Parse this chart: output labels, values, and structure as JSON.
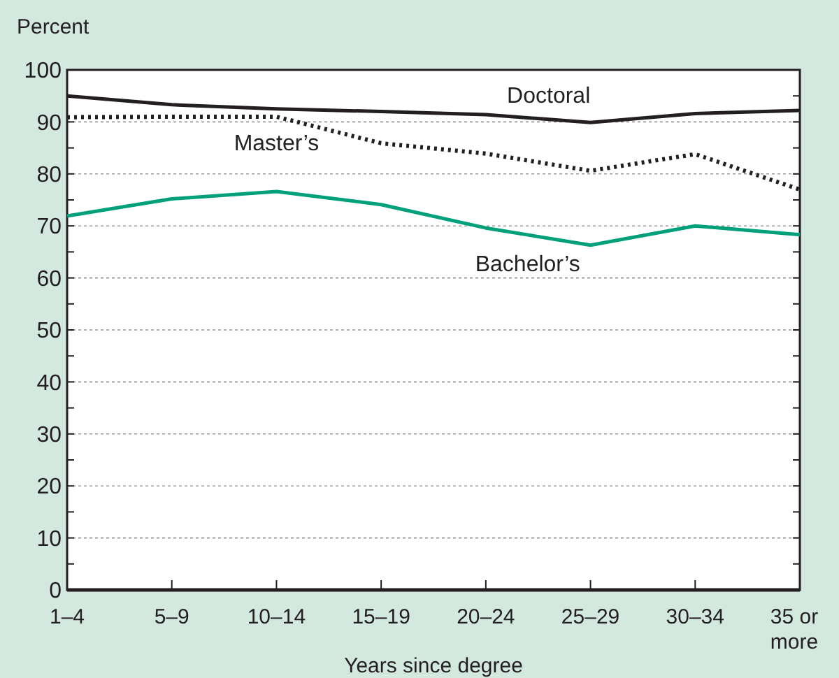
{
  "chart_data": {
    "type": "line",
    "ylabel": "Percent",
    "xlabel": "Years since degree",
    "categories": [
      "1–4",
      "5–9",
      "10–14",
      "15–19",
      "20–24",
      "25–29",
      "30–34",
      "35 or more"
    ],
    "series": [
      {
        "name": "Doctoral",
        "color": "#231f20",
        "line_style": "solid",
        "values": [
          95,
          93.3,
          92.5,
          92,
          91.4,
          89.9,
          91.6,
          92.2
        ]
      },
      {
        "name": "Master’s",
        "color": "#231f20",
        "line_style": "dotted",
        "values": [
          90.9,
          91,
          91,
          85.9,
          83.9,
          80.6,
          83.8,
          77
        ]
      },
      {
        "name": "Bachelor’s",
        "color": "#00a07a",
        "line_style": "solid",
        "values": [
          71.9,
          75.2,
          76.6,
          74.1,
          69.6,
          66.3,
          70,
          68.3
        ]
      }
    ],
    "ylim": [
      0,
      100
    ],
    "yticks": [
      0,
      10,
      20,
      30,
      40,
      50,
      60,
      70,
      80,
      90,
      100
    ],
    "grid": "y",
    "legend": false,
    "marker": "none"
  }
}
